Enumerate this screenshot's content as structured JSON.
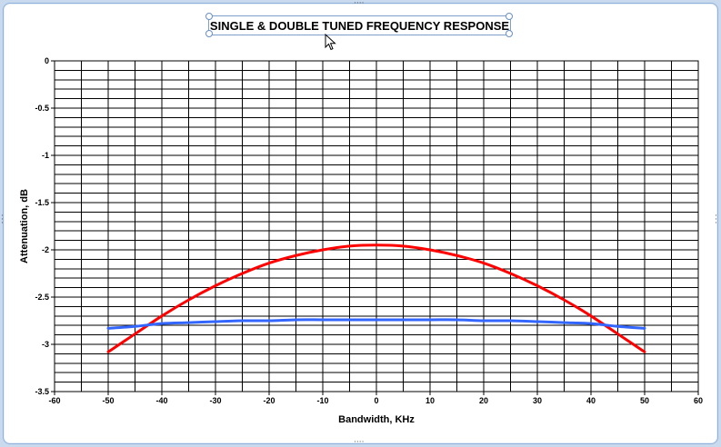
{
  "chart_data": {
    "type": "line",
    "title": "SINGLE & DOUBLE TUNED FREQUENCY RESPONSE",
    "xlabel": "Bandwidth, KHz",
    "ylabel": "Attenuation, dB",
    "xlim": [
      -60,
      60
    ],
    "ylim": [
      -3.5,
      0
    ],
    "x_ticks": [
      -60,
      -50,
      -40,
      -30,
      -20,
      -10,
      0,
      10,
      20,
      30,
      40,
      50,
      60
    ],
    "y_ticks": [
      0,
      -0.5,
      -1,
      -1.5,
      -2,
      -2.5,
      -3,
      -3.5
    ],
    "x_tick_labels": [
      "-60",
      "-50",
      "-40",
      "-30",
      "-20",
      "-10",
      "0",
      "10",
      "20",
      "30",
      "40",
      "50",
      "60"
    ],
    "y_tick_labels": [
      "0",
      "-0.5",
      "-1",
      "-1.5",
      "-2",
      "-2.5",
      "-3",
      "-3.5"
    ],
    "grid": true,
    "legend": "none",
    "x": [
      -50,
      -45,
      -40,
      -35,
      -30,
      -25,
      -20,
      -15,
      -10,
      -5,
      0,
      5,
      10,
      15,
      20,
      25,
      30,
      35,
      40,
      45,
      50
    ],
    "series": [
      {
        "color": "#ff0000",
        "values": [
          -3.08,
          -2.89,
          -2.7,
          -2.53,
          -2.38,
          -2.25,
          -2.14,
          -2.06,
          -2.0,
          -1.96,
          -1.95,
          -1.96,
          -2.0,
          -2.06,
          -2.14,
          -2.25,
          -2.38,
          -2.53,
          -2.7,
          -2.89,
          -3.08
        ]
      },
      {
        "color": "#3366ff",
        "values": [
          -2.83,
          -2.81,
          -2.78,
          -2.77,
          -2.76,
          -2.75,
          -2.75,
          -2.74,
          -2.74,
          -2.74,
          -2.74,
          -2.74,
          -2.74,
          -2.74,
          -2.75,
          -2.75,
          -2.76,
          -2.77,
          -2.78,
          -2.81,
          -2.83
        ]
      }
    ]
  }
}
